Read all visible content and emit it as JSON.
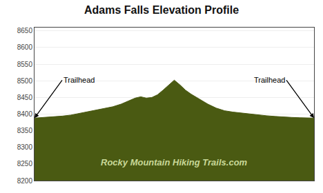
{
  "chart_data": {
    "type": "area",
    "title": "Adams Falls Elevation Profile",
    "x": [
      0.0,
      0.02,
      0.04,
      0.06,
      0.08,
      0.1,
      0.13,
      0.16,
      0.19,
      0.22,
      0.25,
      0.28,
      0.31,
      0.34,
      0.36,
      0.38,
      0.4,
      0.42,
      0.44,
      0.46,
      0.48,
      0.5,
      0.52,
      0.54,
      0.56,
      0.59,
      0.62,
      0.65,
      0.68,
      0.71,
      0.74,
      0.77,
      0.8,
      0.83,
      0.86,
      0.89,
      0.92,
      0.95,
      0.97,
      0.99,
      1.0
    ],
    "values": [
      8388,
      8389,
      8390,
      8391,
      8392,
      8394,
      8397,
      8402,
      8408,
      8413,
      8418,
      8422,
      8430,
      8440,
      8448,
      8452,
      8448,
      8450,
      8458,
      8472,
      8488,
      8502,
      8488,
      8472,
      8460,
      8445,
      8430,
      8418,
      8410,
      8406,
      8403,
      8400,
      8398,
      8395,
      8393,
      8391,
      8390,
      8389,
      8389,
      8389,
      8388
    ],
    "color": "#4a5a12",
    "xlim": [
      0,
      1
    ],
    "ylim": [
      8200,
      8660
    ],
    "yticks": [
      8200,
      8250,
      8300,
      8350,
      8400,
      8450,
      8500,
      8550,
      8600,
      8650
    ],
    "grid": true,
    "tick_labels": "y",
    "annotations": [
      "Trailhead",
      "Trailhead"
    ],
    "watermark": {
      "text": "Rocky Mountain Hiking Trails.com",
      "color": "#c8d898"
    }
  }
}
